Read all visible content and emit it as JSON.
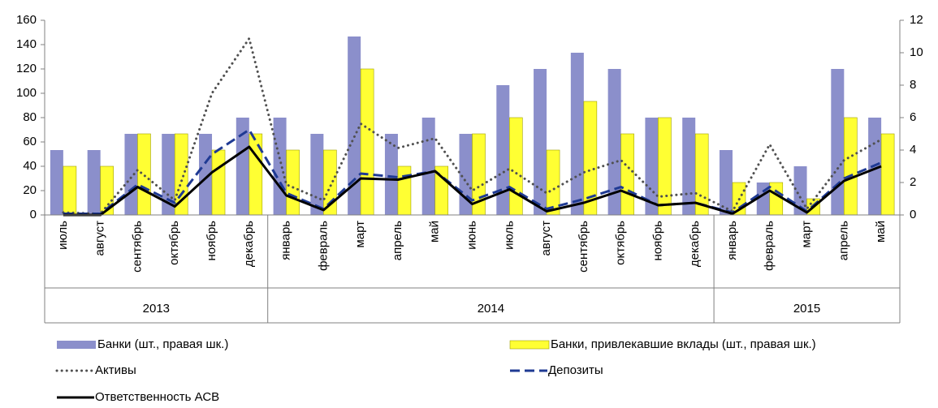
{
  "chart_data": {
    "type": "bar-line",
    "groups": [
      {
        "label": "2013",
        "categories": [
          "июль",
          "август",
          "сентябрь",
          "октябрь",
          "ноябрь",
          "декабрь"
        ]
      },
      {
        "label": "2014",
        "categories": [
          "январь",
          "февраль",
          "март",
          "апрель",
          "май",
          "июнь",
          "июль",
          "август",
          "сентябрь",
          "октябрь",
          "ноябрь",
          "декабрь"
        ]
      },
      {
        "label": "2015",
        "categories": [
          "январь",
          "февраль",
          "март",
          "апрель",
          "май"
        ]
      }
    ],
    "series": [
      {
        "name": "Банки (шт., правая шк.)",
        "type": "bar",
        "axis": "y2",
        "color": "#8b8fcb",
        "values": [
          4,
          4,
          5,
          5,
          5,
          6,
          6,
          5,
          11,
          5,
          6,
          5,
          8,
          9,
          10,
          9,
          6,
          6,
          4,
          2,
          3,
          9,
          6
        ]
      },
      {
        "name": "Банки, привлекавшие вклады (шт., правая шк.)",
        "type": "bar",
        "axis": "y2",
        "color": "#ffff33",
        "values": [
          3,
          3,
          5,
          5,
          4,
          5,
          4,
          4,
          9,
          3,
          3,
          5,
          6,
          4,
          7,
          5,
          6,
          5,
          2,
          2,
          1,
          6,
          5
        ]
      },
      {
        "name": "Активы",
        "type": "line",
        "style": "dotted",
        "color": "#505050",
        "values": [
          2,
          1,
          37,
          12,
          100,
          145,
          25,
          12,
          75,
          55,
          63,
          20,
          38,
          18,
          35,
          45,
          15,
          18,
          3,
          58,
          5,
          45,
          62
        ]
      },
      {
        "name": "Депозиты",
        "type": "line",
        "style": "dashed",
        "color": "#1f3a93",
        "values": [
          1,
          1,
          25,
          10,
          50,
          70,
          18,
          5,
          34,
          31,
          36,
          12,
          23,
          5,
          13,
          23,
          8,
          10,
          2,
          23,
          3,
          30,
          43
        ]
      },
      {
        "name": "Ответственность АСВ",
        "type": "line",
        "style": "solid",
        "color": "#000000",
        "values": [
          0,
          0,
          23,
          7,
          35,
          56,
          16,
          4,
          30,
          29,
          36,
          9,
          21,
          3,
          10,
          20,
          8,
          10,
          1,
          20,
          2,
          28,
          40
        ]
      }
    ],
    "ylim": [
      0,
      160
    ],
    "yticks": [
      0,
      20,
      40,
      60,
      80,
      100,
      120,
      140,
      160
    ],
    "y2lim": [
      0,
      12
    ],
    "y2ticks": [
      0,
      2,
      4,
      6,
      8,
      10,
      12
    ],
    "grid": false
  }
}
